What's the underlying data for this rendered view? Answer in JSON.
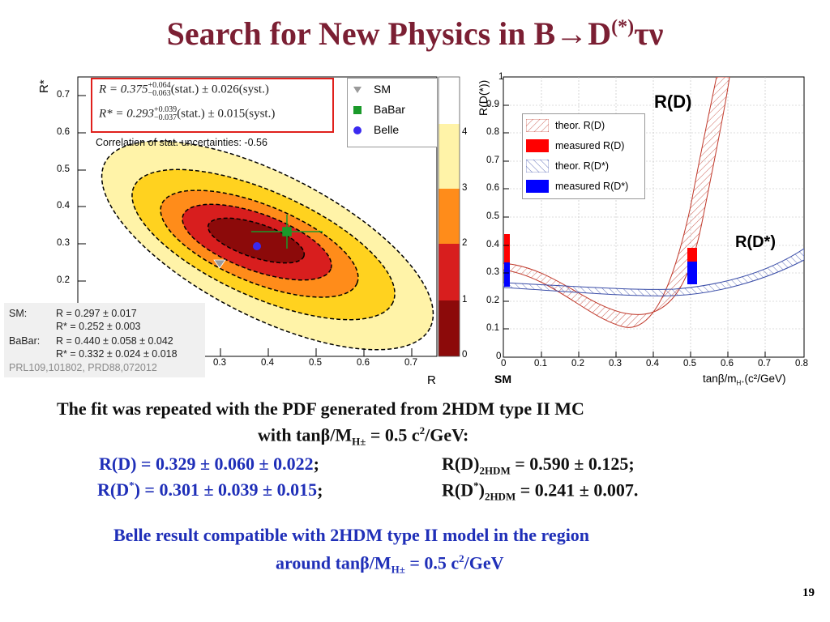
{
  "slide": {
    "title": "Search for New Physics in B→D",
    "title_sup": "(*)",
    "title_tail": "τν",
    "page_number": "19"
  },
  "left_plot": {
    "y_axis_label": "R*",
    "x_axis_label": "R",
    "y_ticks": [
      "0.7",
      "0.6",
      "0.5",
      "0.4",
      "0.3",
      "0.2"
    ],
    "x_ticks": [
      "0.3",
      "0.4",
      "0.5",
      "0.6",
      "0.7"
    ],
    "colorbar_ticks": [
      "4",
      "3",
      "2",
      "1",
      "0"
    ],
    "equation_R": {
      "lhs": "R = 0.375",
      "sup": "+0.064",
      "sub": "−0.063",
      "rest": "(stat.) ± 0.026(syst.)"
    },
    "equation_Rstar": {
      "lhs": "R* = 0.293",
      "sup": "+0.039",
      "sub": "−0.037",
      "rest": "(stat.) ± 0.015(syst.)"
    },
    "correlation_text": "Correlation of stat. uncertainties: -0.56",
    "legend": [
      {
        "label": "SM",
        "color": "#9a9a9a",
        "marker": "triangle-down"
      },
      {
        "label": "BaBar",
        "color": "#1a9a2a",
        "marker": "square"
      },
      {
        "label": "Belle",
        "color": "#3a2af0",
        "marker": "circle"
      }
    ],
    "contour_colors": [
      "#fff3a8",
      "#ffd21f",
      "#ff8c1a",
      "#d81e1e",
      "#8c0a0a"
    ]
  },
  "results_box": {
    "sm_label": "SM:",
    "sm_lines": [
      "R = 0.297 ± 0.017",
      "R* = 0.252 ± 0.003"
    ],
    "babar_label": "BaBar:",
    "babar_lines": [
      "R = 0.440 ± 0.058 ± 0.042",
      "R* = 0.332 ± 0.024 ± 0.018"
    ],
    "reference": "PRL109,101802, PRD88,072012"
  },
  "right_plot": {
    "y_axis_label": "R(D(*))",
    "y_ticks": [
      "1",
      "0.9",
      "0.8",
      "0.7",
      "0.6",
      "0.5",
      "0.4",
      "0.3",
      "0.2",
      "0.1",
      "0"
    ],
    "x_ticks": [
      "0",
      "0.1",
      "0.2",
      "0.3",
      "0.4",
      "0.5",
      "0.6",
      "0.7",
      "0.8"
    ],
    "x_axis_label": "tanβ/m",
    "x_axis_sub": "H⁺",
    "x_axis_unit": "(c²/GeV)",
    "sm_label": "SM",
    "label_RD": "R(D)",
    "label_RDstar": "R(D*)",
    "legend": [
      {
        "label": "theor. R(D)",
        "color": "#c0392b"
      },
      {
        "label": "measured R(D)",
        "color": "#ff0000"
      },
      {
        "label": "theor. R(D*)",
        "color": "#3b4ea8"
      },
      {
        "label": "measured R(D*)",
        "color": "#0000ff"
      }
    ]
  },
  "text": {
    "line1": "The fit was repeated with the PDF generated from 2HDM type II MC",
    "line2_pre": "with  tanβ/M",
    "line2_sub": "H±",
    "line2_post": " = 0.5 c",
    "line2_sup": "2",
    "line2_tail": "/GeV:",
    "rd_left": "R(D) = 0.329 ± 0.060 ± 0.022",
    "rd_semicolon": ";",
    "rd_right_pre": "R(D)",
    "rd_right_sub": "2HDM",
    "rd_right_post": " = 0.590 ± 0.125;",
    "rds_left_pre": "R(D",
    "rds_left_sup": "*",
    "rds_left_post": ") = 0.301 ± 0.039 ± 0.015",
    "rds_semicolon": ";",
    "rds_right_pre": "R(D",
    "rds_right_sup": "*",
    "rds_right_mid": ")",
    "rds_right_sub": "2HDM",
    "rds_right_post": " = 0.241 ± 0.007.",
    "concl1": "Belle result compatible with 2HDM type II model  in the region",
    "concl2_pre": "around tanβ/M",
    "concl2_sub": "H±",
    "concl2_post": " = 0.5 c",
    "concl2_sup": "2",
    "concl2_tail": "/GeV"
  }
}
